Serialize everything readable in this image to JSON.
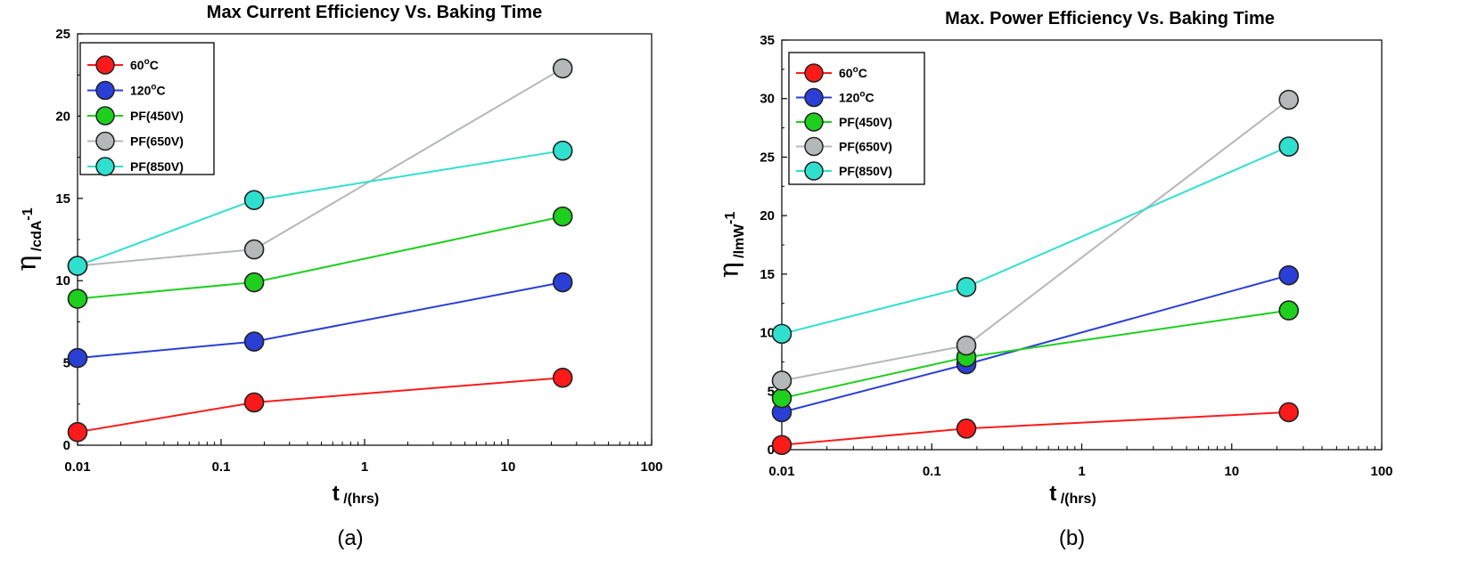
{
  "chart_data": [
    {
      "type": "line",
      "panel_label": "(a)",
      "title": "Max Current Efficiency Vs. Baking Time",
      "xlabel_main": "t",
      "xlabel_sub": " /(hrs)",
      "ylabel_main": "η",
      "ylabel_sub": " /cdA",
      "ylabel_sup": "-1",
      "xscale": "log",
      "xlim": [
        0.01,
        100
      ],
      "xticks": [
        0.01,
        0.1,
        1,
        10,
        100
      ],
      "xtick_labels": [
        "0.01",
        "0.1",
        "1",
        "10",
        "100"
      ],
      "ylim": [
        0,
        25
      ],
      "yticks": [
        0,
        5,
        10,
        15,
        20,
        25
      ],
      "ytick_labels": [
        "0",
        "5",
        "10",
        "15",
        "20",
        "25"
      ],
      "legend_position": "top-left",
      "x": [
        0.01,
        0.17,
        24
      ],
      "series": [
        {
          "name": "60°C",
          "name_main": "60",
          "name_sup": "o",
          "name_tail": "C",
          "color": "#ff1a1a",
          "values": [
            0.8,
            2.6,
            4.1
          ]
        },
        {
          "name": "120°C",
          "name_main": "120",
          "name_sup": "o",
          "name_tail": "C",
          "color": "#2a3fd6",
          "values": [
            5.3,
            6.3,
            9.9
          ]
        },
        {
          "name": "PF(450V)",
          "name_main": "PF(450V)",
          "color": "#1ecf1e",
          "values": [
            8.9,
            9.9,
            13.9
          ]
        },
        {
          "name": "PF(650V)",
          "name_main": "PF(650V)",
          "color": "#b5b8b8",
          "values": [
            10.9,
            11.9,
            22.9
          ]
        },
        {
          "name": "PF(850V)",
          "name_main": "PF(850V)",
          "color": "#2fe0cf",
          "values": [
            10.9,
            14.9,
            17.9
          ]
        }
      ]
    },
    {
      "type": "line",
      "panel_label": "(b)",
      "title": "Max. Power Efficiency Vs. Baking Time",
      "xlabel_main": "t",
      "xlabel_sub": " /(hrs)",
      "ylabel_main": "η",
      "ylabel_sub": " /lmW",
      "ylabel_sup": "-1",
      "xscale": "log",
      "xlim": [
        0.01,
        100
      ],
      "xticks": [
        0.01,
        0.1,
        1,
        10,
        100
      ],
      "xtick_labels": [
        "0.01",
        "0.1",
        "1",
        "10",
        "100"
      ],
      "ylim": [
        0,
        35
      ],
      "yticks": [
        0,
        5,
        10,
        15,
        20,
        25,
        30,
        35
      ],
      "ytick_labels": [
        "0",
        "5",
        "10",
        "15",
        "20",
        "25",
        "30",
        "35"
      ],
      "legend_position": "top-left",
      "x": [
        0.01,
        0.17,
        24
      ],
      "series": [
        {
          "name": "60°C",
          "name_main": "60",
          "name_sup": "o",
          "name_tail": "C",
          "color": "#ff1a1a",
          "values": [
            0.4,
            1.8,
            3.2
          ]
        },
        {
          "name": "120°C",
          "name_main": "120",
          "name_sup": "o",
          "name_tail": "C",
          "color": "#2a3fd6",
          "values": [
            3.2,
            7.3,
            14.9
          ]
        },
        {
          "name": "PF(450V)",
          "name_main": "PF(450V)",
          "color": "#1ecf1e",
          "values": [
            4.4,
            7.9,
            11.9
          ]
        },
        {
          "name": "PF(650V)",
          "name_main": "PF(650V)",
          "color": "#b5b8b8",
          "values": [
            5.9,
            8.9,
            29.9
          ]
        },
        {
          "name": "PF(850V)",
          "name_main": "PF(850V)",
          "color": "#2fe0cf",
          "values": [
            9.9,
            13.9,
            25.9
          ]
        }
      ]
    }
  ]
}
